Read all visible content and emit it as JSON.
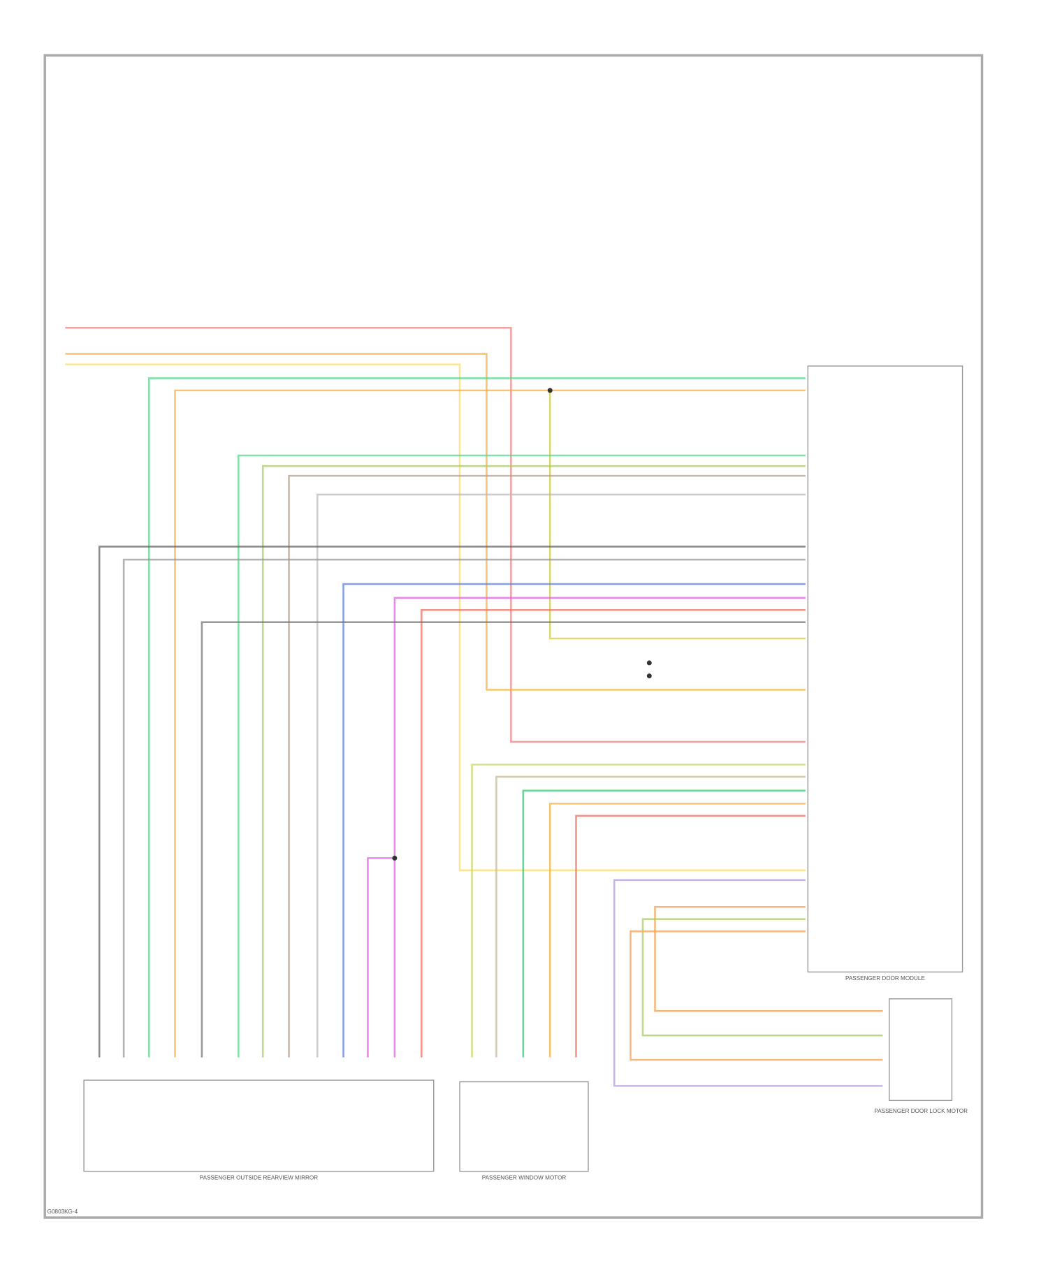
{
  "diagram": {
    "modules": [
      {
        "label": "PASSENGER DOOR MODULE"
      },
      {
        "label": "PASSENGER OUTSIDE REARVIEW MIRROR"
      },
      {
        "label": "PASSENGER WINDOW MOTOR"
      },
      {
        "label": "PASSENGER DOOR LOCK MOTOR"
      }
    ],
    "footer": "G0803KG-4"
  }
}
